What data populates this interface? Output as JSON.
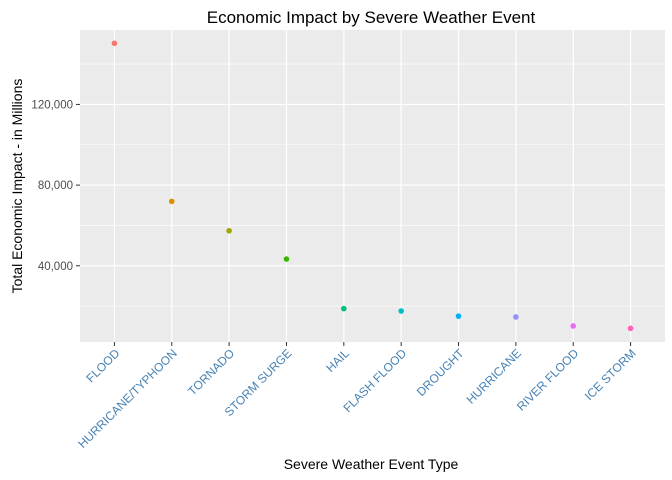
{
  "chart_data": {
    "type": "scatter",
    "title": "Economic Impact by Severe Weather Event",
    "xlabel": "Severe Weather Event Type",
    "ylabel": "Total Economic Impact - in Millions",
    "categories": [
      "FLOOD",
      "HURRICANE/TYPHOON",
      "TORNADO",
      "STORM SURGE",
      "HAIL",
      "FLASH FLOOD",
      "DROUGHT",
      "HURRICANE",
      "RIVER FLOOD",
      "ICE STORM"
    ],
    "values": [
      150320,
      71914,
      57352,
      43324,
      18761,
      17562,
      15019,
      14610,
      10148,
      8968
    ],
    "colors": [
      "#F8766D",
      "#D89000",
      "#A3A500",
      "#39B600",
      "#00BF7D",
      "#00BFC4",
      "#00B0F6",
      "#9590FF",
      "#E76BF3",
      "#FF62BC"
    ],
    "ylim": [
      2200,
      156900
    ],
    "yticks": [
      40000,
      80000,
      120000
    ],
    "ytick_labels": [
      "40,000",
      "80,000",
      "120,000"
    ],
    "grid": true,
    "legend": "none",
    "panel_background": "#EBEBEB",
    "tick_label_color": "#4682B4"
  }
}
